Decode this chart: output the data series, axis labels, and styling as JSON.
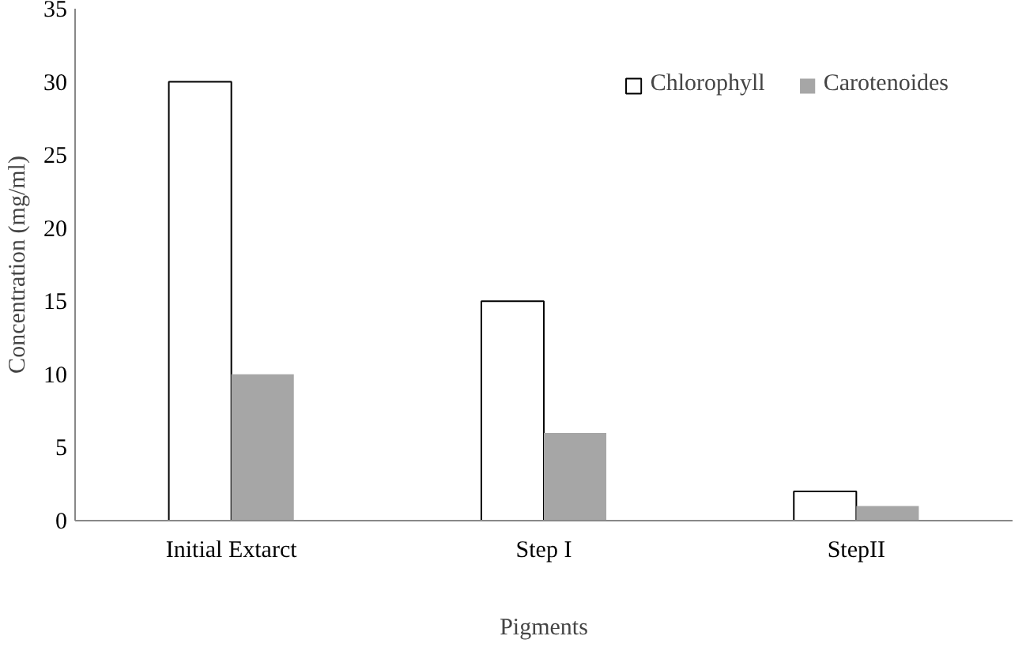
{
  "chart_data": {
    "type": "bar",
    "xlabel": "Pigments",
    "ylabel": "Concentration (mg/ml)",
    "categories": [
      "Initial Extarct",
      "Step I",
      "StepII"
    ],
    "series": [
      {
        "name": "Chlorophyll",
        "color": "#ffffff",
        "values": [
          30,
          15,
          2
        ]
      },
      {
        "name": "Carotenoides",
        "color": "#a6a6a6",
        "values": [
          10,
          6,
          1
        ]
      }
    ],
    "ylim": [
      0,
      35
    ],
    "yticks": [
      0,
      5,
      10,
      15,
      20,
      25,
      30,
      35
    ],
    "grid": false,
    "legend": "top right"
  }
}
